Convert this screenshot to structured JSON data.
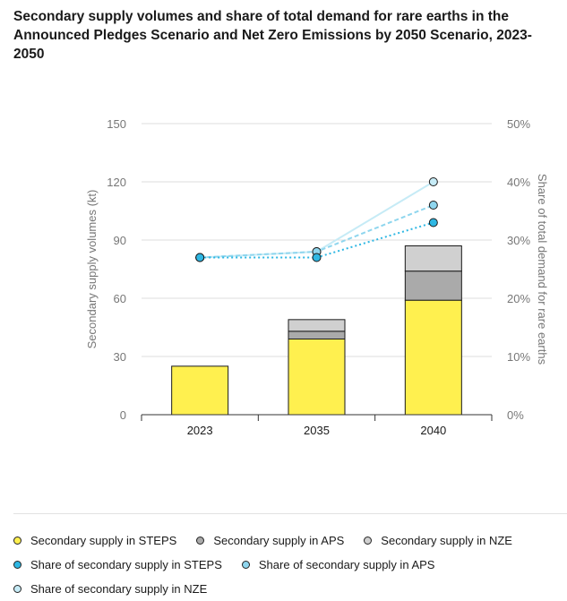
{
  "title": "Secondary supply volumes and share of total demand for rare earths in the Announced Pledges Scenario and Net Zero Emissions by 2050 Scenario, 2023-2050",
  "colors": {
    "steps_bar": "#fff04f",
    "aps_bar": "#aaaaaa",
    "nze_bar": "#d0d0d0",
    "steps_share": "#2eb7e3",
    "aps_share": "#8fd6ee",
    "nze_share": "#c6ebf6",
    "axis": "#333333",
    "grid": "#dddddd"
  },
  "legend": [
    [
      {
        "label": "Secondary supply in STEPS",
        "color": "#fff04f"
      },
      {
        "label": "Secondary supply in APS",
        "color": "#aaaaaa"
      },
      {
        "label": "Secondary supply in NZE",
        "color": "#d0d0d0"
      }
    ],
    [
      {
        "label": "Share of secondary supply in STEPS",
        "color": "#2eb7e3"
      },
      {
        "label": "Share of secondary supply in APS",
        "color": "#8fd6ee"
      }
    ],
    [
      {
        "label": "Share of secondary supply in NZE",
        "color": "#c6ebf6"
      }
    ]
  ],
  "chart_data": {
    "type": "bar",
    "stacked": true,
    "categories": [
      "2023",
      "2035",
      "2040"
    ],
    "series": [
      {
        "name": "Secondary supply in STEPS",
        "axis": "left",
        "values": [
          25,
          39,
          59
        ]
      },
      {
        "name": "Secondary supply in APS",
        "axis": "left",
        "values": [
          0,
          4,
          15
        ]
      },
      {
        "name": "Secondary supply in NZE",
        "axis": "left",
        "values": [
          0,
          6,
          13
        ]
      },
      {
        "name": "Share of secondary supply in STEPS",
        "type": "line",
        "axis": "right",
        "style": "dotted",
        "values": [
          27,
          27,
          33
        ]
      },
      {
        "name": "Share of secondary supply in APS",
        "type": "line",
        "axis": "right",
        "style": "dashed",
        "values": [
          27,
          28,
          36
        ]
      },
      {
        "name": "Share of secondary supply in NZE",
        "type": "line",
        "axis": "right",
        "style": "solid",
        "values": [
          27,
          28,
          40
        ]
      }
    ],
    "ylabel": "Secondary supply volumes (kt)",
    "y2label": "Share of total demand for rare earths",
    "ylim": [
      0,
      150
    ],
    "y2lim": [
      0,
      50
    ],
    "yticks": [
      "0",
      "30",
      "60",
      "90",
      "120",
      "150"
    ],
    "y2ticks": [
      "0%",
      "10%",
      "20%",
      "30%",
      "40%",
      "50%"
    ],
    "grid": true,
    "legend_position": "bottom"
  }
}
